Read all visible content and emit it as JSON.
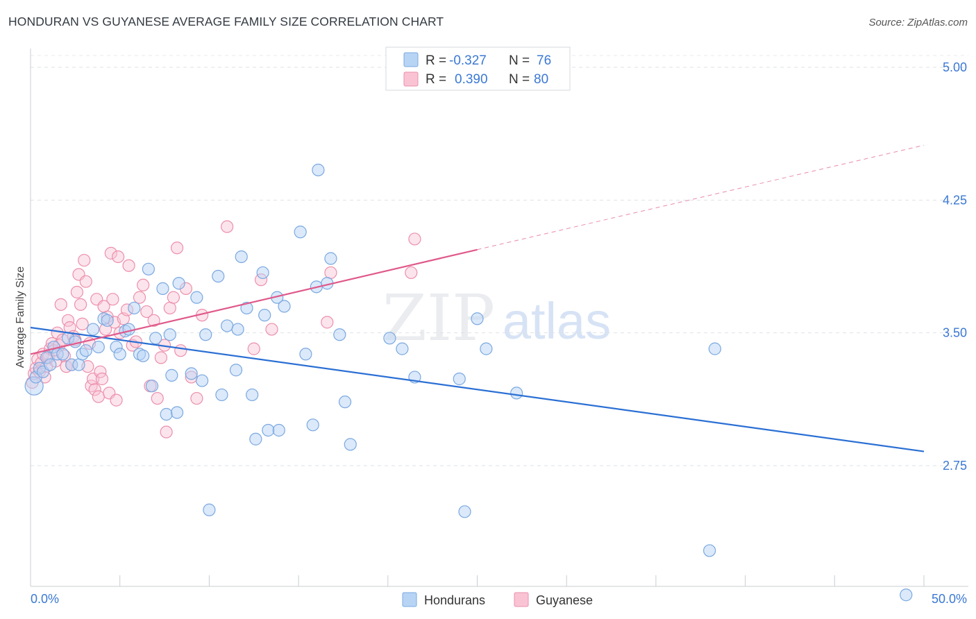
{
  "header": {
    "title": "HONDURAN VS GUYANESE AVERAGE FAMILY SIZE CORRELATION CHART",
    "source": "Source: ZipAtlas.com"
  },
  "legend": {
    "r_label": "R =",
    "n_label": "N =",
    "hondurans": {
      "r": "-0.327",
      "n": "76"
    },
    "guyanese": {
      "r": "0.390",
      "n": "80"
    }
  },
  "watermark": {
    "zip": "ZIP",
    "atlas": "atlas"
  },
  "colors": {
    "hondurans_fill": "#b8d4f5",
    "hondurans_stroke": "#7aa8e0",
    "hondurans_line": "#2a6fd4",
    "guyanese_fill": "#f9c3d4",
    "guyanese_stroke": "#ec8fab",
    "guyanese_line": "#e0588a",
    "tick_text": "#3a78d4"
  },
  "chart_data": {
    "type": "scatter",
    "title": "HONDURAN VS GUYANESE AVERAGE FAMILY SIZE CORRELATION CHART",
    "xlabel": "",
    "ylabel": "Average Family Size",
    "xlim": [
      0,
      50
    ],
    "ylim": [
      2.0,
      5.1
    ],
    "x_tick_labels": [
      "0.0%",
      "50.0%"
    ],
    "y_ticks": [
      2.75,
      3.5,
      4.25,
      5.0
    ],
    "y_tick_labels": [
      "2.75",
      "3.50",
      "4.25",
      "5.00"
    ],
    "grid": true,
    "legend_position": "bottom-center",
    "series": [
      {
        "name": "Hondurans",
        "r": -0.327,
        "n": 76,
        "trend": {
          "x": [
            0,
            50
          ],
          "y": [
            3.53,
            2.83
          ]
        },
        "points": [
          [
            0.2,
            3.2
          ],
          [
            0.3,
            3.25
          ],
          [
            0.5,
            3.3
          ],
          [
            0.7,
            3.28
          ],
          [
            0.9,
            3.36
          ],
          [
            1.1,
            3.32
          ],
          [
            1.3,
            3.42
          ],
          [
            1.5,
            3.38
          ],
          [
            1.8,
            3.38
          ],
          [
            2.1,
            3.47
          ],
          [
            2.3,
            3.32
          ],
          [
            2.5,
            3.45
          ],
          [
            2.7,
            3.32
          ],
          [
            2.9,
            3.38
          ],
          [
            3.1,
            3.4
          ],
          [
            3.5,
            3.52
          ],
          [
            3.8,
            3.42
          ],
          [
            4.1,
            3.58
          ],
          [
            4.3,
            3.57
          ],
          [
            4.8,
            3.42
          ],
          [
            5.0,
            3.38
          ],
          [
            5.3,
            3.51
          ],
          [
            5.5,
            3.52
          ],
          [
            5.8,
            3.64
          ],
          [
            6.1,
            3.38
          ],
          [
            6.3,
            3.37
          ],
          [
            6.6,
            3.86
          ],
          [
            6.8,
            3.2
          ],
          [
            7.0,
            3.47
          ],
          [
            7.4,
            3.75
          ],
          [
            7.6,
            3.04
          ],
          [
            7.8,
            3.49
          ],
          [
            7.9,
            3.26
          ],
          [
            8.2,
            3.05
          ],
          [
            8.3,
            3.78
          ],
          [
            9.0,
            3.27
          ],
          [
            9.3,
            3.7
          ],
          [
            9.6,
            3.23
          ],
          [
            9.8,
            3.49
          ],
          [
            10.0,
            2.5
          ],
          [
            10.5,
            3.82
          ],
          [
            10.7,
            3.15
          ],
          [
            11.0,
            3.54
          ],
          [
            11.5,
            3.29
          ],
          [
            11.6,
            3.52
          ],
          [
            11.8,
            3.93
          ],
          [
            12.1,
            3.64
          ],
          [
            12.4,
            3.15
          ],
          [
            12.6,
            2.9
          ],
          [
            13.0,
            3.84
          ],
          [
            13.1,
            3.6
          ],
          [
            13.3,
            2.95
          ],
          [
            13.8,
            3.7
          ],
          [
            13.9,
            2.95
          ],
          [
            14.2,
            3.65
          ],
          [
            15.1,
            4.07
          ],
          [
            15.4,
            3.38
          ],
          [
            15.8,
            2.98
          ],
          [
            16.0,
            3.76
          ],
          [
            16.1,
            4.42
          ],
          [
            16.6,
            3.78
          ],
          [
            16.8,
            3.92
          ],
          [
            17.3,
            3.49
          ],
          [
            17.6,
            3.11
          ],
          [
            17.9,
            2.87
          ],
          [
            20.1,
            3.47
          ],
          [
            20.8,
            3.41
          ],
          [
            21.5,
            3.25
          ],
          [
            24.0,
            3.24
          ],
          [
            24.3,
            2.49
          ],
          [
            25.0,
            3.58
          ],
          [
            25.5,
            3.41
          ],
          [
            27.2,
            3.16
          ],
          [
            38.3,
            3.41
          ],
          [
            38.0,
            2.27
          ],
          [
            49.0,
            2.02
          ]
        ]
      },
      {
        "name": "Guyanese",
        "r": 0.39,
        "n": 80,
        "trend": {
          "x": [
            0,
            25
          ],
          "y": [
            3.38,
            3.97
          ],
          "dashed_extension": {
            "x": [
              25,
              50
            ],
            "y": [
              3.97,
              4.56
            ]
          }
        },
        "points": [
          [
            0.1,
            3.22
          ],
          [
            0.2,
            3.27
          ],
          [
            0.3,
            3.3
          ],
          [
            0.4,
            3.35
          ],
          [
            0.5,
            3.28
          ],
          [
            0.6,
            3.33
          ],
          [
            0.7,
            3.38
          ],
          [
            0.8,
            3.25
          ],
          [
            0.9,
            3.31
          ],
          [
            1.0,
            3.36
          ],
          [
            1.1,
            3.41
          ],
          [
            1.2,
            3.44
          ],
          [
            1.3,
            3.4
          ],
          [
            1.4,
            3.34
          ],
          [
            1.5,
            3.5
          ],
          [
            1.6,
            3.43
          ],
          [
            1.7,
            3.66
          ],
          [
            1.8,
            3.46
          ],
          [
            1.9,
            3.37
          ],
          [
            2.0,
            3.31
          ],
          [
            2.1,
            3.57
          ],
          [
            2.2,
            3.53
          ],
          [
            2.3,
            3.32
          ],
          [
            2.4,
            3.48
          ],
          [
            2.5,
            3.46
          ],
          [
            2.6,
            3.73
          ],
          [
            2.7,
            3.83
          ],
          [
            2.8,
            3.66
          ],
          [
            2.9,
            3.55
          ],
          [
            3.0,
            3.91
          ],
          [
            3.1,
            3.79
          ],
          [
            3.2,
            3.31
          ],
          [
            3.3,
            3.44
          ],
          [
            3.4,
            3.2
          ],
          [
            3.5,
            3.24
          ],
          [
            3.6,
            3.18
          ],
          [
            3.7,
            3.69
          ],
          [
            3.8,
            3.14
          ],
          [
            3.9,
            3.28
          ],
          [
            4.0,
            3.24
          ],
          [
            4.1,
            3.65
          ],
          [
            4.2,
            3.52
          ],
          [
            4.3,
            3.59
          ],
          [
            4.4,
            3.16
          ],
          [
            4.5,
            3.95
          ],
          [
            4.6,
            3.69
          ],
          [
            4.7,
            3.56
          ],
          [
            4.8,
            3.12
          ],
          [
            4.9,
            3.93
          ],
          [
            5.0,
            3.5
          ],
          [
            5.2,
            3.58
          ],
          [
            5.4,
            3.63
          ],
          [
            5.5,
            3.88
          ],
          [
            5.7,
            3.43
          ],
          [
            5.9,
            3.45
          ],
          [
            6.1,
            3.7
          ],
          [
            6.3,
            3.77
          ],
          [
            6.5,
            3.62
          ],
          [
            6.7,
            3.2
          ],
          [
            6.9,
            3.57
          ],
          [
            7.1,
            3.13
          ],
          [
            7.3,
            3.36
          ],
          [
            7.5,
            3.43
          ],
          [
            7.6,
            2.94
          ],
          [
            7.8,
            3.64
          ],
          [
            8.0,
            3.7
          ],
          [
            8.2,
            3.98
          ],
          [
            8.4,
            3.4
          ],
          [
            8.7,
            3.75
          ],
          [
            9.0,
            3.25
          ],
          [
            9.3,
            3.13
          ],
          [
            9.6,
            3.6
          ],
          [
            11.0,
            4.1
          ],
          [
            12.5,
            3.41
          ],
          [
            12.9,
            3.8
          ],
          [
            13.5,
            3.52
          ],
          [
            16.6,
            3.56
          ],
          [
            16.8,
            3.84
          ],
          [
            21.3,
            3.84
          ],
          [
            21.5,
            4.03
          ]
        ]
      }
    ]
  }
}
